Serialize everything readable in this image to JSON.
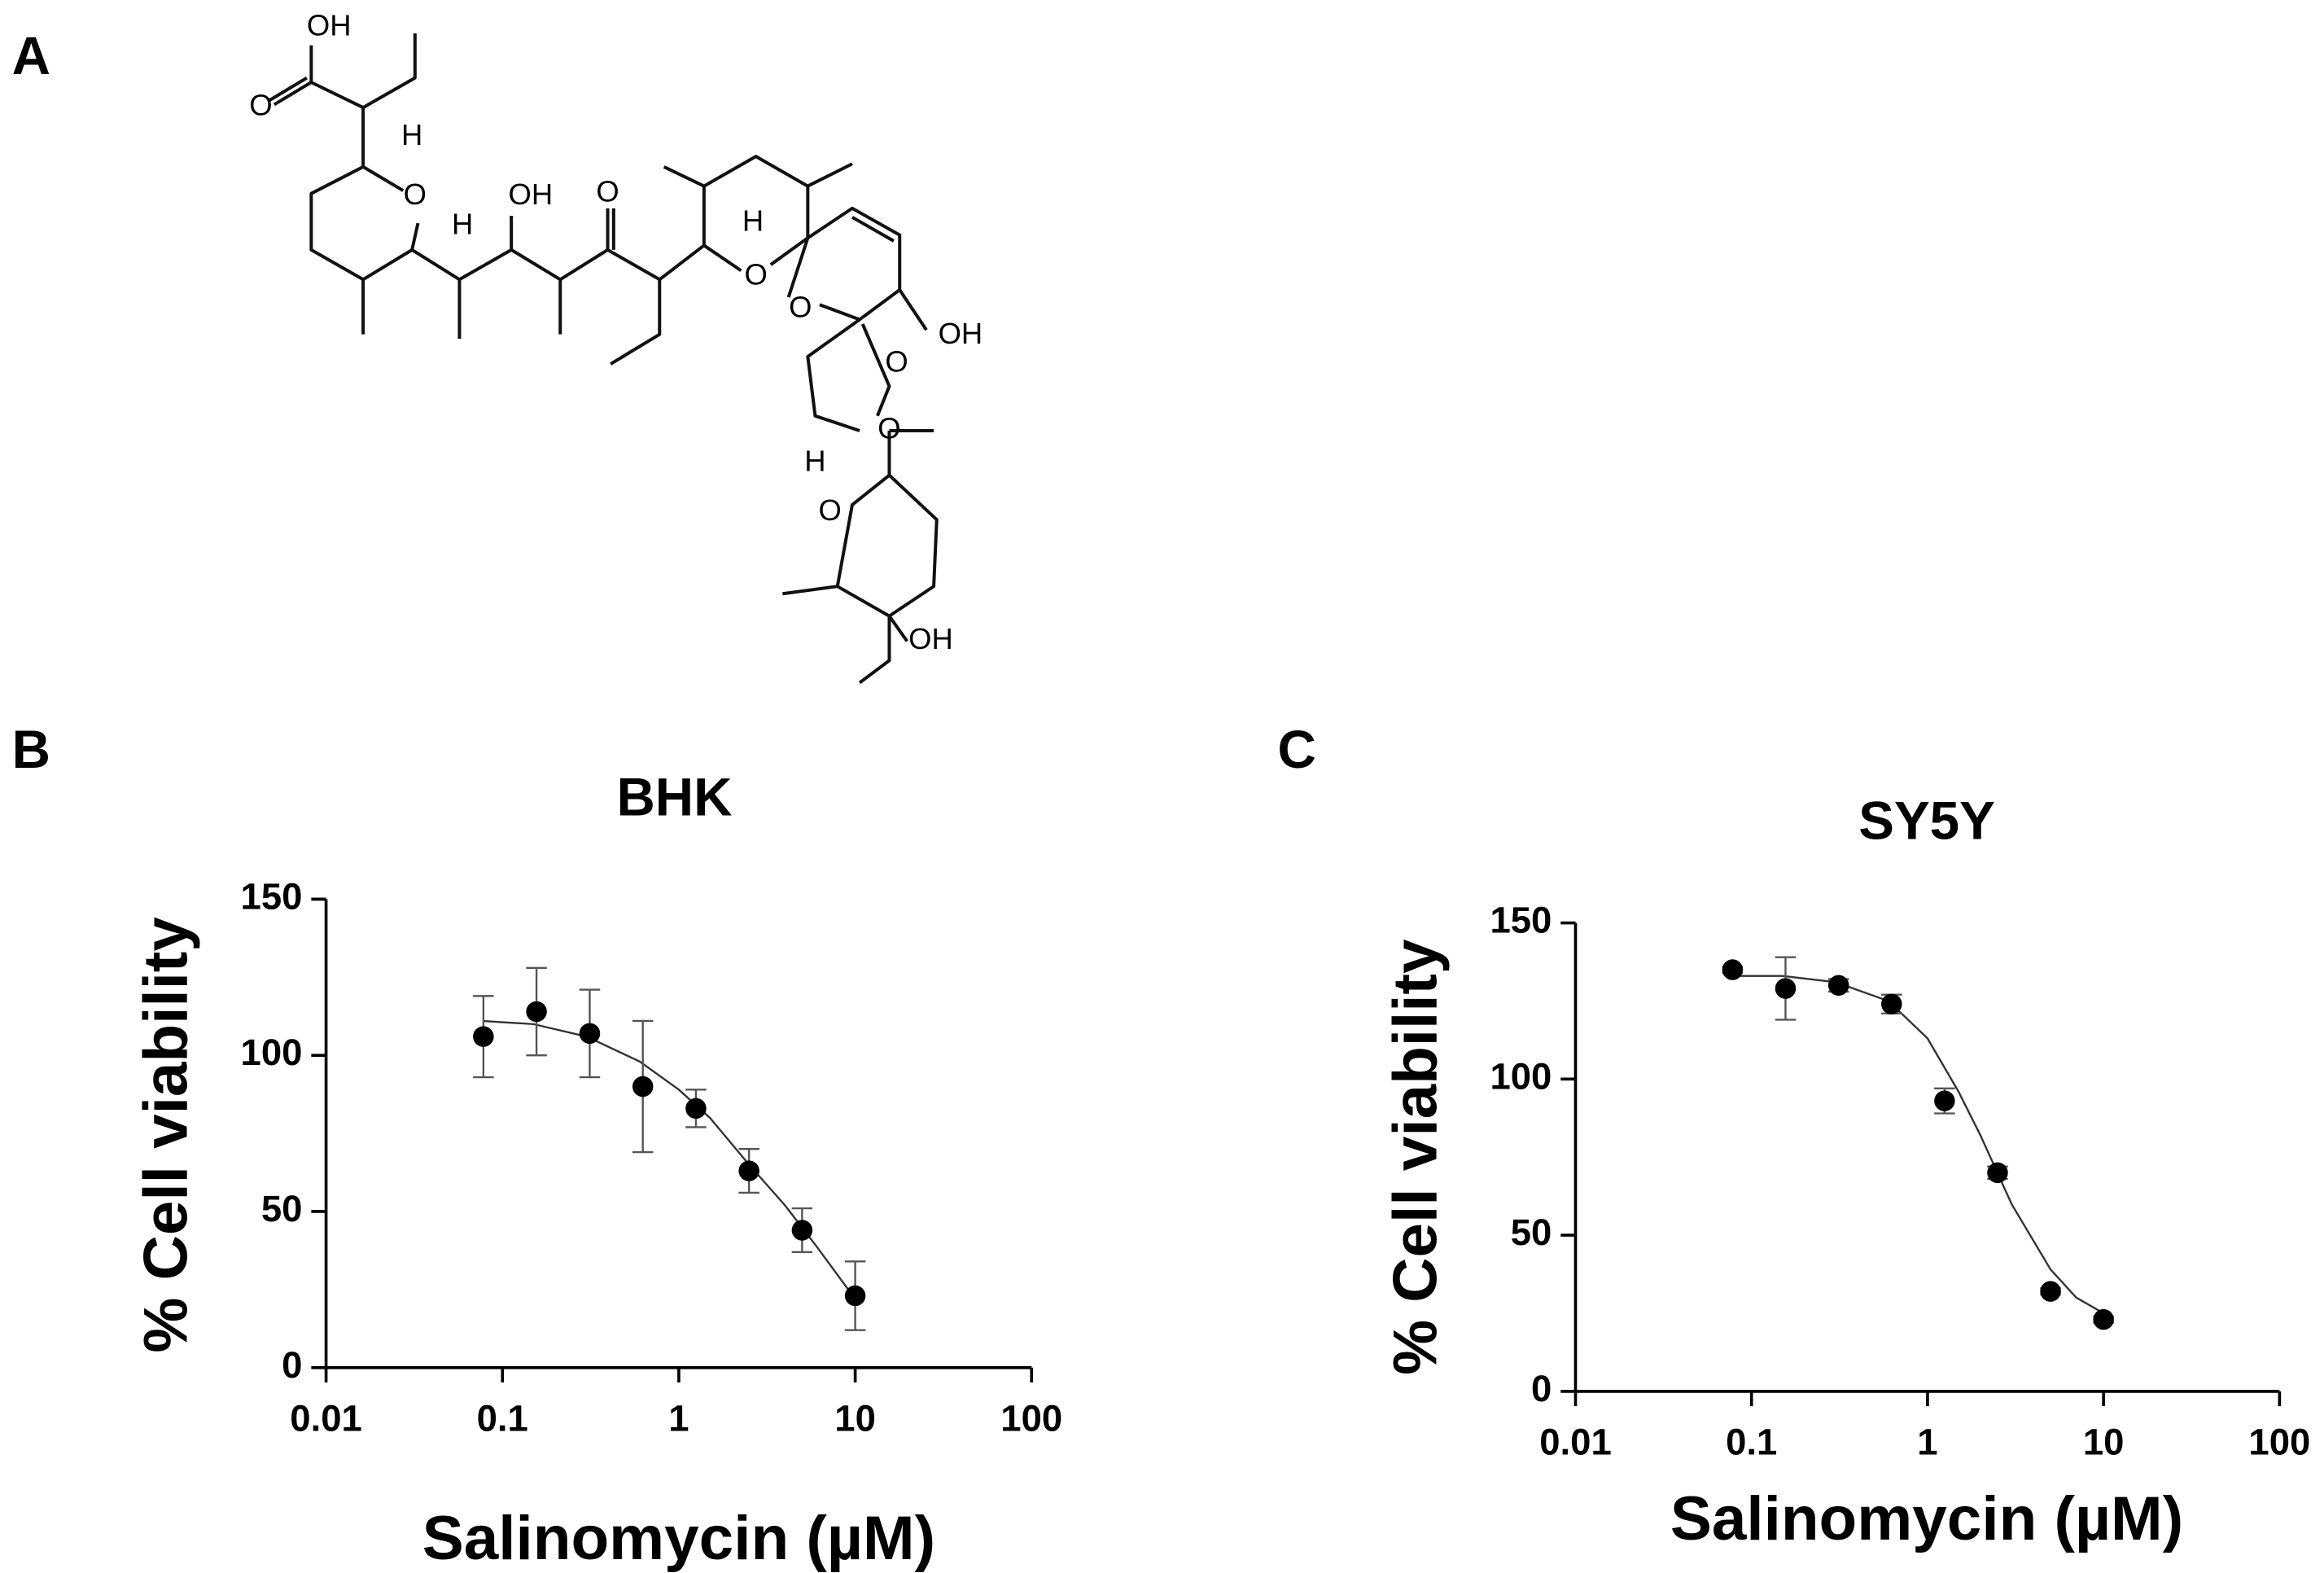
{
  "structure": {
    "panel": "A",
    "labels": [
      "OH",
      "O",
      "H",
      "O",
      "H",
      "OH",
      "O",
      "H",
      "O",
      "O",
      "OH",
      "O",
      "O",
      "H",
      "O",
      "OH"
    ]
  },
  "chart_data": [
    {
      "type": "scatter",
      "panel": "B",
      "title": "BHK",
      "xlabel": "Salinomycin (µM)",
      "ylabel": "% Cell viability",
      "xscale": "log",
      "xlim": [
        0.01,
        100
      ],
      "xticks": [
        0.01,
        0.1,
        1,
        10,
        100
      ],
      "ylim": [
        0,
        150
      ],
      "yticks": [
        0,
        50,
        100,
        150
      ],
      "color": "#000000",
      "x": [
        0.078,
        0.156,
        0.3125,
        0.625,
        1.25,
        2.5,
        5,
        10
      ],
      "values": [
        106,
        114,
        107,
        90,
        83,
        63,
        44,
        23
      ],
      "errors": [
        13,
        14,
        14,
        21,
        6,
        7,
        7,
        11
      ],
      "fit": {
        "x": [
          0.078,
          0.15,
          0.3,
          0.6,
          1,
          1.5,
          2.5,
          4,
          6,
          10
        ],
        "values": [
          111,
          110,
          106,
          98,
          89,
          80,
          65,
          52,
          39,
          22
        ]
      }
    },
    {
      "type": "scatter",
      "panel": "C",
      "title": "SY5Y",
      "xlabel": "Salinomycin (µM)",
      "ylabel": "% Cell viability",
      "xscale": "log",
      "xlim": [
        0.01,
        100
      ],
      "xticks": [
        0.01,
        0.1,
        1,
        10,
        100
      ],
      "ylim": [
        0,
        150
      ],
      "yticks": [
        0,
        50,
        100,
        150
      ],
      "color": "#000000",
      "x": [
        0.078,
        0.156,
        0.3125,
        0.625,
        1.25,
        2.5,
        5,
        10
      ],
      "values": [
        135,
        129,
        130,
        124,
        93,
        70,
        32,
        23
      ],
      "errors": [
        1,
        10,
        2,
        3,
        4,
        2,
        1,
        1
      ],
      "fit": {
        "x": [
          0.078,
          0.15,
          0.3,
          0.6,
          1,
          1.5,
          2,
          3,
          5,
          7,
          10
        ],
        "values": [
          133,
          133,
          131,
          125,
          113,
          96,
          82,
          60,
          39,
          30,
          25
        ]
      }
    }
  ]
}
